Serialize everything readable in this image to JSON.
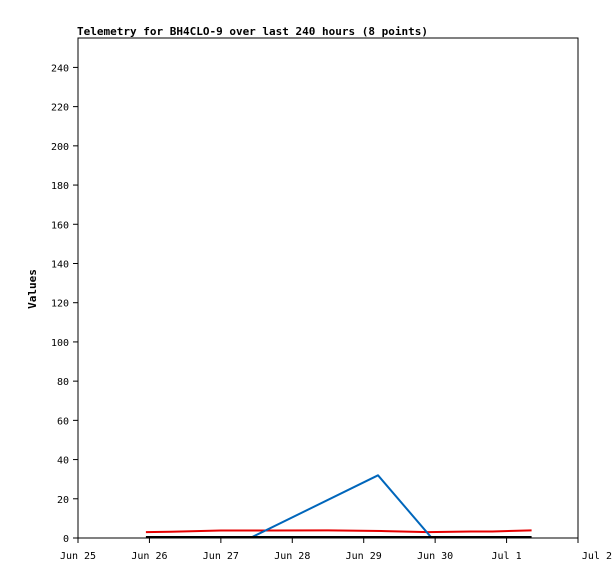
{
  "chart_data": {
    "type": "line",
    "title": "Telemetry for BH4CLO-9 over last 240 hours (8 points)",
    "xlabel": "",
    "ylabel": "Values",
    "x_ticks": [
      "Jun 25",
      "Jun 26",
      "Jun 27",
      "Jun 28",
      "Jun 29",
      "Jun 30",
      "Jul 1",
      "Jul 2"
    ],
    "x_range_days": [
      0,
      7
    ],
    "ylim": [
      0,
      255
    ],
    "y_ticks": [
      0,
      20,
      40,
      60,
      80,
      100,
      120,
      140,
      160,
      180,
      200,
      220,
      240
    ],
    "grid": false,
    "series": [
      {
        "color": "#e60000",
        "points": [
          [
            0.95,
            3
          ],
          [
            1.3,
            3.2
          ],
          [
            2.0,
            3.8
          ],
          [
            2.7,
            3.8
          ],
          [
            3.5,
            3.9
          ],
          [
            4.3,
            3.5
          ],
          [
            4.9,
            3.0
          ],
          [
            5.5,
            3.3
          ],
          [
            5.8,
            3.3
          ],
          [
            6.35,
            3.9
          ]
        ]
      },
      {
        "color": "#0066bb",
        "points": [
          [
            2.3,
            -2
          ],
          [
            4.2,
            32
          ],
          [
            5.0,
            -2
          ]
        ]
      },
      {
        "color": "#000000",
        "points": [
          [
            0.95,
            0.5
          ],
          [
            6.35,
            0.5
          ]
        ]
      }
    ]
  }
}
